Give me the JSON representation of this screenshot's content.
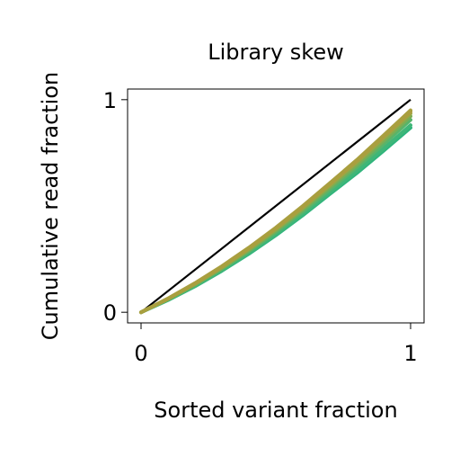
{
  "chart_data": {
    "type": "line",
    "title": "Library skew",
    "xlabel": "Sorted variant fraction",
    "ylabel": "Cumulative read fraction",
    "xlim": [
      -0.05,
      1.05
    ],
    "ylim": [
      -0.05,
      1.05
    ],
    "x_ticks": [
      0,
      1
    ],
    "x_tick_labels": [
      "0",
      "1"
    ],
    "y_ticks": [
      0,
      1
    ],
    "y_tick_labels": [
      "0",
      "1"
    ],
    "grid": false,
    "legend": "none",
    "colors": {
      "reference": "#000000",
      "series_palette": [
        "#2fb47c",
        "#3fb678",
        "#58b46a",
        "#7aad55",
        "#99a844",
        "#b29a3e",
        "#a99f3f"
      ]
    },
    "x": [
      0,
      0.1,
      0.2,
      0.3,
      0.4,
      0.5,
      0.6,
      0.7,
      0.8,
      0.9,
      1.0
    ],
    "series": [
      {
        "values": [
          0,
          0.057,
          0.122,
          0.195,
          0.275,
          0.362,
          0.456,
          0.556,
          0.654,
          0.76,
          0.868
        ]
      },
      {
        "values": [
          0,
          0.058,
          0.124,
          0.198,
          0.279,
          0.367,
          0.462,
          0.563,
          0.663,
          0.77,
          0.88
        ]
      },
      {
        "values": [
          0,
          0.06,
          0.128,
          0.204,
          0.287,
          0.377,
          0.474,
          0.577,
          0.681,
          0.791,
          0.905
        ]
      },
      {
        "values": [
          0,
          0.062,
          0.131,
          0.208,
          0.292,
          0.384,
          0.483,
          0.588,
          0.693,
          0.806,
          0.922
        ]
      },
      {
        "values": [
          0,
          0.063,
          0.134,
          0.212,
          0.298,
          0.391,
          0.491,
          0.597,
          0.705,
          0.819,
          0.935
        ]
      },
      {
        "values": [
          0,
          0.064,
          0.136,
          0.215,
          0.302,
          0.396,
          0.497,
          0.604,
          0.713,
          0.828,
          0.944
        ]
      },
      {
        "values": [
          0,
          0.065,
          0.137,
          0.217,
          0.304,
          0.398,
          0.5,
          0.607,
          0.716,
          0.832,
          0.95
        ]
      }
    ],
    "reference_line": {
      "x": [
        0,
        1
      ],
      "y": [
        0,
        1
      ]
    }
  }
}
